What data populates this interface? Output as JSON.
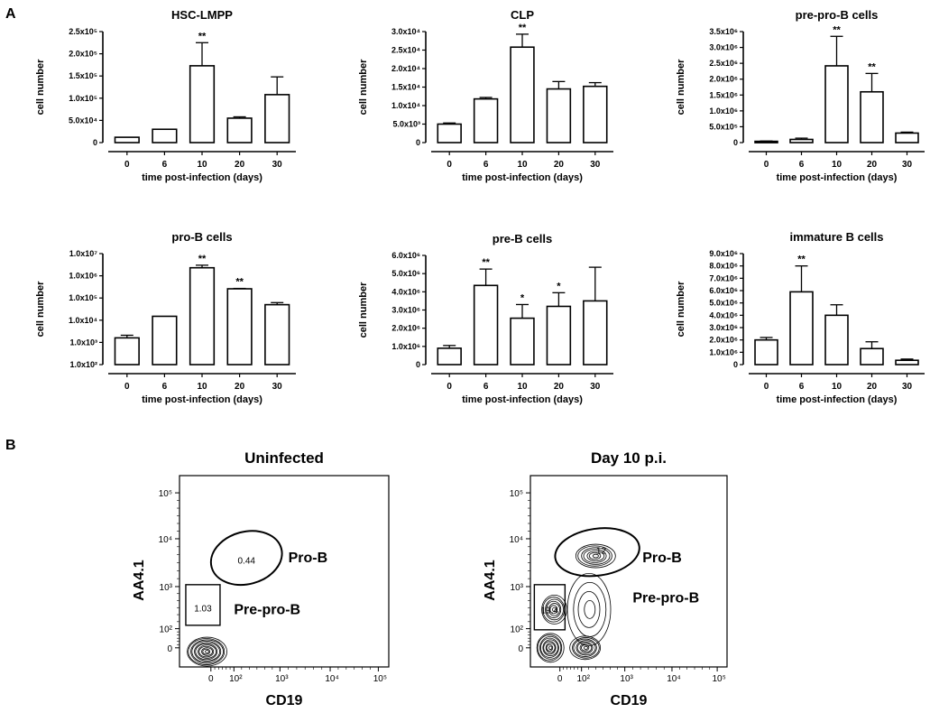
{
  "panel_labels": [
    "A",
    "B"
  ],
  "chart_data": [
    {
      "type": "bar",
      "title": "HSC-LMPP",
      "xlabel": "time post-infection (days)",
      "ylabel": "cell number",
      "categories": [
        "0",
        "6",
        "10",
        "20",
        "30"
      ],
      "values": [
        12000,
        30000,
        173000,
        55000,
        108000
      ],
      "errors": [
        0,
        0,
        52000,
        3000,
        40000
      ],
      "significance": [
        "",
        "",
        "**",
        "",
        ""
      ],
      "ylim": [
        0,
        250000
      ],
      "scale": "linear",
      "ytick_labels": [
        "0",
        "5.0x10⁴",
        "1.0x10⁵",
        "1.5x10⁵",
        "2.0x10⁵",
        "2.5x10⁵"
      ],
      "ytick_values": [
        0,
        50000,
        100000,
        150000,
        200000,
        250000
      ]
    },
    {
      "type": "bar",
      "title": "CLP",
      "xlabel": "time post-infection (days)",
      "ylabel": "cell number",
      "categories": [
        "0",
        "6",
        "10",
        "20",
        "30"
      ],
      "values": [
        5000,
        11800,
        25800,
        14500,
        15200
      ],
      "errors": [
        300,
        400,
        3500,
        2000,
        1000
      ],
      "significance": [
        "",
        "",
        "**",
        "",
        ""
      ],
      "ylim": [
        0,
        30000
      ],
      "scale": "linear",
      "ytick_labels": [
        "0",
        "5.0x10³",
        "1.0x10⁴",
        "1.5x10⁴",
        "2.0x10⁴",
        "2.5x10⁴",
        "3.0x10⁴"
      ],
      "ytick_values": [
        0,
        5000,
        10000,
        15000,
        20000,
        25000,
        30000
      ]
    },
    {
      "type": "bar",
      "title": "pre-pro-B cells",
      "xlabel": "time post-infection (days)",
      "ylabel": "cell number",
      "categories": [
        "0",
        "6",
        "10",
        "20",
        "30"
      ],
      "values": [
        40000,
        100000,
        2420000,
        1600000,
        300000
      ],
      "errors": [
        10000,
        40000,
        930000,
        580000,
        30000
      ],
      "significance": [
        "",
        "",
        "**",
        "**",
        ""
      ],
      "ylim": [
        0,
        3500000
      ],
      "scale": "linear",
      "ytick_labels": [
        "0",
        "5.0x10⁵",
        "1.0x10⁶",
        "1.5x10⁶",
        "2.0x10⁶",
        "2.5x10⁶",
        "3.0x10⁶",
        "3.5x10⁶"
      ],
      "ytick_values": [
        0,
        500000,
        1000000,
        1500000,
        2000000,
        2500000,
        3000000,
        3500000
      ]
    },
    {
      "type": "bar",
      "title": "pro-B cells",
      "xlabel": "time post-infection (days)",
      "ylabel": "cell number",
      "categories": [
        "0",
        "6",
        "10",
        "20",
        "30"
      ],
      "values": [
        1600,
        15000,
        2300000,
        260000,
        50000
      ],
      "errors": [
        500,
        0,
        700000,
        10000,
        12000
      ],
      "significance": [
        "",
        "",
        "**",
        "**",
        ""
      ],
      "ylim": [
        100,
        10000000
      ],
      "scale": "log",
      "ytick_labels": [
        "1.0x10²",
        "1.0x10³",
        "1.0x10⁴",
        "1.0x10⁵",
        "1.0x10⁶",
        "1.0x10⁷"
      ],
      "ytick_values": [
        100,
        1000,
        10000,
        100000,
        1000000,
        10000000
      ]
    },
    {
      "type": "bar",
      "title": "pre-B cells",
      "xlabel": "time post-infection (days)",
      "ylabel": "cell number",
      "categories": [
        "0",
        "6",
        "10",
        "20",
        "30"
      ],
      "values": [
        900000,
        4350000,
        2550000,
        3200000,
        3500000
      ],
      "errors": [
        150000,
        900000,
        750000,
        750000,
        1850000
      ],
      "significance": [
        "",
        "**",
        "*",
        "*",
        ""
      ],
      "ylim": [
        0,
        6000000
      ],
      "scale": "linear",
      "ytick_labels": [
        "0",
        "1.0x10⁶",
        "2.0x10⁶",
        "3.0x10⁶",
        "4.0x10⁶",
        "5.0x10⁶",
        "6.0x10⁶"
      ],
      "ytick_values": [
        0,
        1000000,
        2000000,
        3000000,
        4000000,
        5000000,
        6000000
      ]
    },
    {
      "type": "bar",
      "title": "immature B cells",
      "xlabel": "time post-infection (days)",
      "ylabel": "cell number",
      "categories": [
        "0",
        "6",
        "10",
        "20",
        "30"
      ],
      "values": [
        2000000,
        5900000,
        4000000,
        1300000,
        350000
      ],
      "errors": [
        200000,
        2100000,
        850000,
        550000,
        100000
      ],
      "significance": [
        "",
        "**",
        "",
        "",
        ""
      ],
      "ylim": [
        0,
        9000000
      ],
      "scale": "linear",
      "ytick_labels": [
        "0",
        "1.0x10⁶",
        "2.0x10⁶",
        "3.0x10⁶",
        "4.0x10⁶",
        "5.0x10⁶",
        "6.0x10⁶",
        "7.0x10⁶",
        "8.0x10⁶",
        "9.0x10⁶"
      ],
      "ytick_values": [
        0,
        1000000,
        2000000,
        3000000,
        4000000,
        5000000,
        6000000,
        7000000,
        8000000,
        9000000
      ]
    }
  ],
  "flow_plots": [
    {
      "title": "Uninfected",
      "xlabel": "CD19",
      "ylabel": "AA4.1",
      "xtick_labels": [
        "0",
        "10²",
        "10³",
        "10⁴",
        "10⁵"
      ],
      "ytick_labels": [
        "0",
        "10²",
        "10³",
        "10⁴",
        "10⁵"
      ],
      "gates": [
        {
          "name": "Pro-B",
          "percent": "0.44"
        },
        {
          "name": "Pre-pro-B",
          "percent": "1.03"
        }
      ]
    },
    {
      "title": "Day 10 p.i.",
      "xlabel": "CD19",
      "ylabel": "AA4.1",
      "xtick_labels": [
        "0",
        "10²",
        "10³",
        "10⁴",
        "10⁵"
      ],
      "ytick_labels": [
        "0",
        "10²",
        "10³",
        "10⁴",
        "10⁵"
      ],
      "gates": [
        {
          "name": "Pro-B",
          "percent": "12"
        },
        {
          "name": "Pre-pro-B",
          "percent": "19.4"
        }
      ]
    }
  ]
}
